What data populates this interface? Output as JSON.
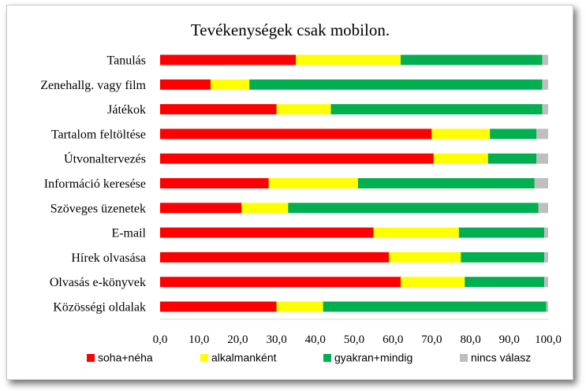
{
  "chart_data": {
    "type": "bar",
    "orientation": "horizontal",
    "stacked": true,
    "title": "Tevékenységek csak mobilon.",
    "categories": [
      "Tanulás",
      "Zenehallg. vagy film",
      "Játékok",
      "Tartalom feltöltése",
      "Útvonaltervezés",
      "Információ keresése",
      "Szöveges üzenetek",
      "E-mail",
      "Hírek olvasása",
      "Olvasás  e-könyvek",
      "Közösségi oldalak"
    ],
    "xlim": [
      0,
      100
    ],
    "x_ticks": [
      "0,0",
      "10,0",
      "20,0",
      "30,0",
      "40,0",
      "50,0",
      "60,0",
      "70,0",
      "80,0",
      "90,0",
      "100,0"
    ],
    "grid": false,
    "legend_position": "bottom",
    "series": [
      {
        "name": "soha+néha",
        "color": "#ff0000",
        "values": [
          35.0,
          13.0,
          30.0,
          70.0,
          70.5,
          28.0,
          21.0,
          55.0,
          59.0,
          62.0,
          30.0
        ]
      },
      {
        "name": "alkalmanként",
        "color": "#ffff00",
        "values": [
          27.0,
          10.0,
          14.0,
          15.0,
          14.0,
          23.0,
          12.0,
          22.0,
          18.5,
          16.5,
          12.0
        ]
      },
      {
        "name": "gyakran+mindig",
        "color": "#00b050",
        "values": [
          36.5,
          75.5,
          54.5,
          12.0,
          12.5,
          45.5,
          64.5,
          22.0,
          21.5,
          20.5,
          57.5
        ]
      },
      {
        "name": "nincs válasz",
        "color": "#bfbfbf",
        "values": [
          1.5,
          1.5,
          1.5,
          3.0,
          3.0,
          3.5,
          2.5,
          1.0,
          1.0,
          1.0,
          0.5
        ]
      }
    ]
  }
}
